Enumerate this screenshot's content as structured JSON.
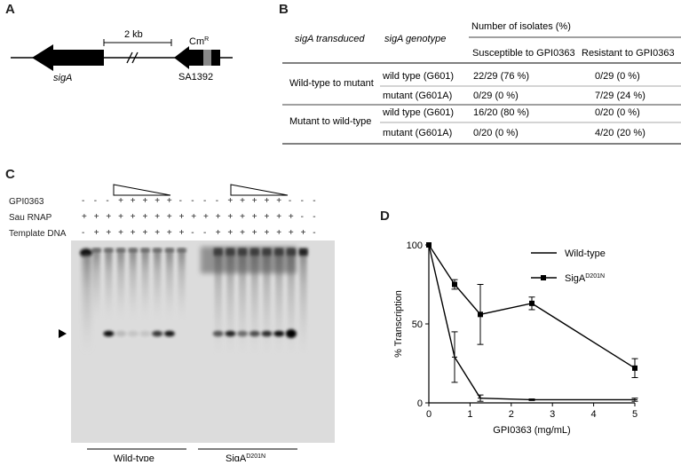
{
  "panelA": {
    "letter": "A",
    "scale_label": "2 kb",
    "gene_label": "sigA",
    "marker_label": "Cm",
    "marker_sup": "R",
    "locus_label": "SA1392"
  },
  "panelB": {
    "letter": "B",
    "col_transduced": "sigA transduced",
    "col_genotype": "sigA genotype",
    "col_group": "Number of isolates (%)",
    "col_susceptible": "Susceptible to GPI0363",
    "col_resistant": "Resistant to GPI0363",
    "groups": [
      {
        "label": "Wild-type to mutant",
        "rows": [
          {
            "genotype": "wild type (G601)",
            "susceptible": "22/29 (76 %)",
            "resistant": "0/29 (0 %)"
          },
          {
            "genotype": "mutant (G601A)",
            "susceptible": "0/29 (0 %)",
            "resistant": "7/29 (24 %)"
          }
        ]
      },
      {
        "label": "Mutant to wild-type",
        "rows": [
          {
            "genotype": "wild type (G601)",
            "susceptible": "16/20 (80 %)",
            "resistant": "0/20 (0 %)"
          },
          {
            "genotype": "mutant (G601A)",
            "susceptible": "0/20 (0 %)",
            "resistant": "4/20 (20 %)"
          }
        ]
      }
    ]
  },
  "panelC": {
    "letter": "C",
    "row_labels": [
      "GPI0363",
      "Sau RNAP",
      "Template DNA"
    ],
    "gpi_row": [
      "-",
      "-",
      "-",
      "+",
      "+",
      "+",
      "+",
      "+",
      "-",
      "-",
      "-",
      "-",
      "+",
      "+",
      "+",
      "+",
      "+",
      "-",
      "-",
      "-"
    ],
    "rnap_row": [
      "+",
      "+",
      "+",
      "+",
      "+",
      "+",
      "+",
      "+",
      "+",
      "+",
      "+",
      "+",
      "+",
      "+",
      "+",
      "+",
      "+",
      "+",
      "-",
      "-"
    ],
    "template_row": [
      "-",
      "+",
      "+",
      "+",
      "+",
      "+",
      "+",
      "+",
      "+",
      "-",
      "-",
      "+",
      "+",
      "+",
      "+",
      "+",
      "+",
      "+",
      "+",
      "-"
    ],
    "wt_label": "Wild-type",
    "mut_label": "SigA",
    "mut_sup": "D201N"
  },
  "chart_data": {
    "type": "line",
    "letter": "D",
    "xlabel": "GPI0363 (mg/mL)",
    "ylabel": "% Transcription",
    "xlim": [
      0,
      5
    ],
    "ylim": [
      0,
      100
    ],
    "xticks": [
      "0",
      "1",
      "2",
      "3",
      "4",
      "5"
    ],
    "yticks": [
      "0",
      "50",
      "100"
    ],
    "legend_position": "top-right",
    "series": [
      {
        "name": "Wild-type",
        "marker": "none",
        "x": [
          0,
          0.625,
          1.25,
          2.5,
          5
        ],
        "y": [
          100,
          29,
          3,
          2,
          2
        ],
        "err": [
          0,
          16,
          2,
          0.5,
          1
        ]
      },
      {
        "name": "SigA",
        "name_sup": "D201N",
        "marker": "square",
        "x": [
          0,
          0.625,
          1.25,
          2.5,
          5
        ],
        "y": [
          100,
          75,
          56,
          63,
          22
        ],
        "err": [
          0,
          3,
          19,
          4,
          6
        ]
      }
    ]
  }
}
